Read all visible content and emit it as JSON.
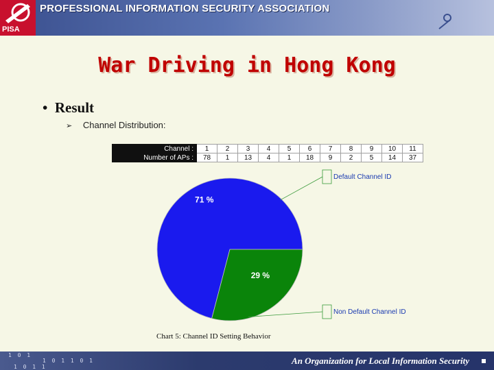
{
  "header": {
    "logo": "PISA",
    "association": "PROFESSIONAL INFORMATION SECURITY ASSOCIATION"
  },
  "slide": {
    "title": "War Driving in Hong Kong",
    "bullet": "Result",
    "sub_bullet": "Channel Distribution:"
  },
  "table": {
    "row_labels": [
      "Channel :",
      "Number of APs :"
    ],
    "channels": [
      "1",
      "2",
      "3",
      "4",
      "5",
      "6",
      "7",
      "8",
      "9",
      "10",
      "11"
    ],
    "aps": [
      "78",
      "1",
      "13",
      "4",
      "1",
      "18",
      "9",
      "2",
      "5",
      "14",
      "37"
    ]
  },
  "chart_data": {
    "type": "pie",
    "title": "",
    "caption": "Chart 5: Channel ID Setting Behavior",
    "slices": [
      {
        "label": "Default Channel ID",
        "value": 71,
        "display": "71 %",
        "color": "#1a1aee"
      },
      {
        "label": "Non Default Channel ID",
        "value": 29,
        "display": "29 %",
        "color": "#0a840a"
      }
    ]
  },
  "footer": {
    "binary": [
      "1 0 1",
      "1 0 1 1 0 1",
      "1 0 1 1"
    ],
    "tagline": "An Organization for Local Information Security"
  },
  "colors": {
    "header": "#3a4f8e",
    "title": "#c00000",
    "footer": "#2c3b6e"
  }
}
